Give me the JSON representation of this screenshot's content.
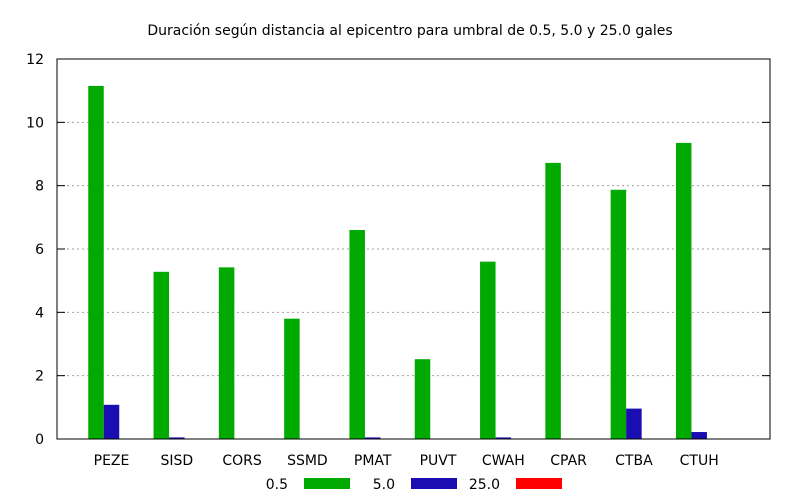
{
  "chart_data": {
    "type": "bar",
    "title": "Duración según distancia al epicentro para umbral de 0.5, 5.0 y 25.0 gales",
    "xlabel": "",
    "ylabel": "",
    "categories": [
      "PEZE",
      "SISD",
      "CORS",
      "SSMD",
      "PMAT",
      "PUVT",
      "CWAH",
      "CPAR",
      "CTBA",
      "CTUH"
    ],
    "ylim": [
      0,
      12
    ],
    "yticks": [
      "0",
      "2",
      "4",
      "6",
      "8",
      "10",
      "12"
    ],
    "grid": "horizontal-dotted",
    "legend_position": "bottom",
    "series": [
      {
        "name": "0.5",
        "color": "#00aa00",
        "values": [
          11.15,
          5.28,
          5.42,
          3.8,
          6.6,
          2.52,
          5.6,
          8.72,
          7.87,
          9.35
        ]
      },
      {
        "name": "5.0",
        "color": "#1a0db2",
        "values": [
          1.08,
          0.05,
          0,
          0,
          0.05,
          0,
          0.05,
          0,
          0.96,
          0.22
        ]
      },
      {
        "name": "25.0",
        "color": "#ff0000",
        "values": [
          0,
          0,
          0,
          0,
          0,
          0,
          0,
          0,
          0,
          0
        ]
      }
    ]
  }
}
